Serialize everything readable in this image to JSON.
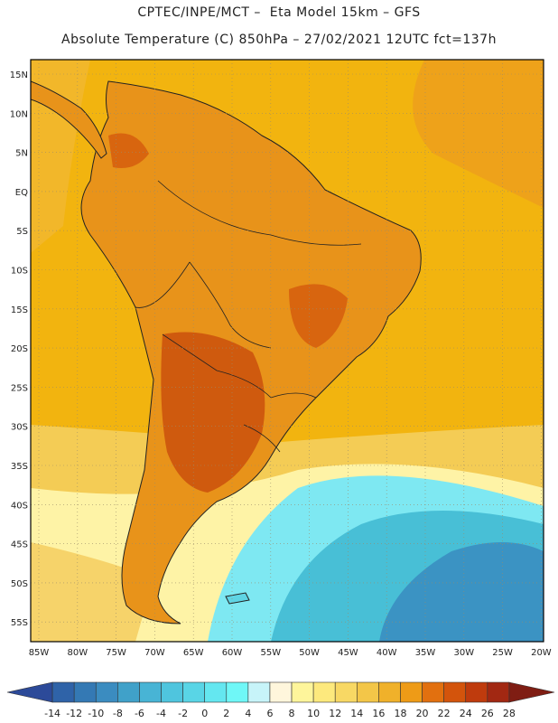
{
  "header": {
    "line1": "CPTEC/INPE/MCT –  Eta Model 15km – GFS",
    "line2": "Absolute Temperature (C) 850hPa – 27/02/2021 12UTC fct=137h"
  },
  "map": {
    "lat_labels": [
      "15N",
      "10N",
      "5N",
      "EQ",
      "5S",
      "10S",
      "15S",
      "20S",
      "25S",
      "30S",
      "35S",
      "40S",
      "45S",
      "50S",
      "55S"
    ],
    "lon_labels": [
      "85W",
      "80W",
      "75W",
      "70W",
      "65W",
      "60W",
      "55W",
      "50W",
      "45W",
      "40W",
      "35W",
      "30W",
      "25W",
      "20W"
    ],
    "ocean_color": "#f4b400",
    "land_color": "#e9960f"
  },
  "colorbar": {
    "labels": [
      "-14",
      "-12",
      "-10",
      "-8",
      "-6",
      "-4",
      "-2",
      "0",
      "2",
      "4",
      "6",
      "8",
      "10",
      "12",
      "14",
      "16",
      "18",
      "20",
      "22",
      "24",
      "26",
      "28"
    ],
    "colors": [
      "#2c4a99",
      "#2f63a8",
      "#3479b4",
      "#3b8cc0",
      "#40a1c9",
      "#48b4d5",
      "#4fc5de",
      "#59d5e6",
      "#64e7f0",
      "#6ff7f7",
      "#c7f4f9",
      "#fff6dc",
      "#fef59b",
      "#fde97d",
      "#f8d864",
      "#f3c648",
      "#f0b12a",
      "#ee9b17",
      "#e2700f",
      "#d3540c",
      "#bf3b0d",
      "#a22812",
      "#7f1d13"
    ]
  }
}
